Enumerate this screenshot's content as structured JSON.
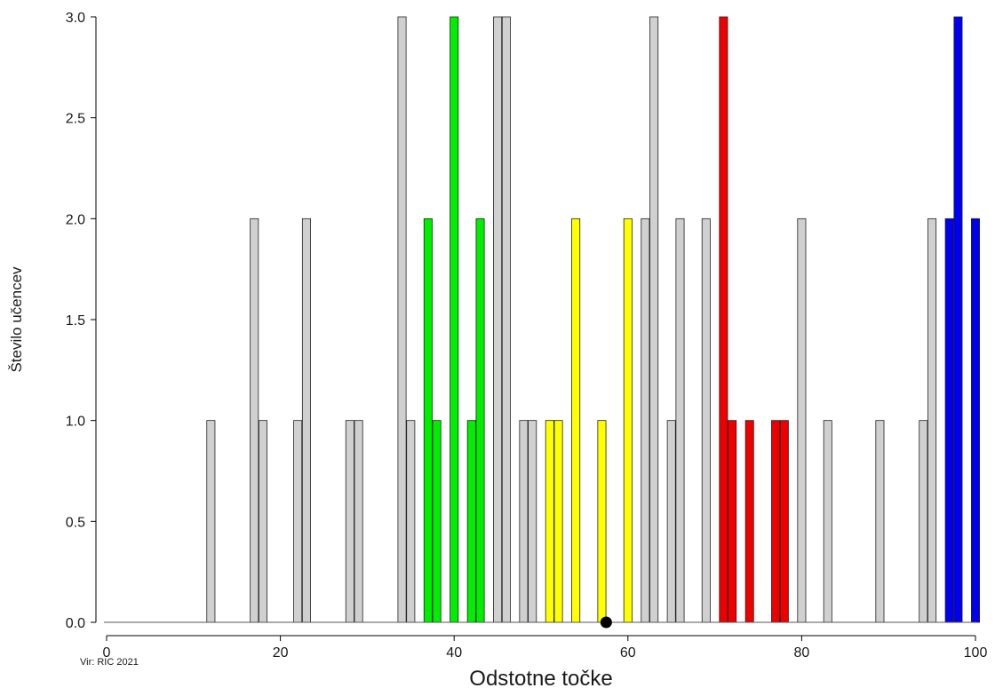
{
  "source_note": "Vir: RIC 2021",
  "chart_data": {
    "type": "bar",
    "xlabel": "Odstotne točke",
    "ylabel": "Število učencev",
    "xlim": [
      0,
      100
    ],
    "ylim": [
      0,
      3
    ],
    "x_ticks": [
      0,
      20,
      40,
      60,
      80,
      100
    ],
    "y_ticks": [
      0,
      0.5,
      1,
      1.5,
      2,
      2.5,
      3
    ],
    "y_tick_labels": [
      "0.0",
      "0.5",
      "1.0",
      "1.5",
      "2.0",
      "2.5",
      "3.0"
    ],
    "grid": false,
    "legend": "none",
    "colors": {
      "grey": "#d0d0d0",
      "green": "#00ee00",
      "yellow": "#ffff00",
      "red": "#ee0000",
      "blue": "#0000ee"
    },
    "bars": [
      {
        "x": 12,
        "y": 1,
        "group": "grey"
      },
      {
        "x": 17,
        "y": 2,
        "group": "grey"
      },
      {
        "x": 18,
        "y": 1,
        "group": "grey"
      },
      {
        "x": 22,
        "y": 1,
        "group": "grey"
      },
      {
        "x": 23,
        "y": 2,
        "group": "grey"
      },
      {
        "x": 28,
        "y": 1,
        "group": "grey"
      },
      {
        "x": 29,
        "y": 1,
        "group": "grey"
      },
      {
        "x": 34,
        "y": 3,
        "group": "grey"
      },
      {
        "x": 35,
        "y": 1,
        "group": "grey"
      },
      {
        "x": 37,
        "y": 2,
        "group": "green"
      },
      {
        "x": 38,
        "y": 1,
        "group": "green"
      },
      {
        "x": 40,
        "y": 3,
        "group": "green"
      },
      {
        "x": 42,
        "y": 1,
        "group": "green"
      },
      {
        "x": 43,
        "y": 2,
        "group": "green"
      },
      {
        "x": 45,
        "y": 3,
        "group": "grey"
      },
      {
        "x": 46,
        "y": 3,
        "group": "grey"
      },
      {
        "x": 48,
        "y": 1,
        "group": "grey"
      },
      {
        "x": 49,
        "y": 1,
        "group": "grey"
      },
      {
        "x": 51,
        "y": 1,
        "group": "yellow"
      },
      {
        "x": 52,
        "y": 1,
        "group": "yellow"
      },
      {
        "x": 54,
        "y": 2,
        "group": "yellow"
      },
      {
        "x": 57,
        "y": 1,
        "group": "yellow"
      },
      {
        "x": 60,
        "y": 2,
        "group": "yellow"
      },
      {
        "x": 62,
        "y": 2,
        "group": "grey"
      },
      {
        "x": 63,
        "y": 3,
        "group": "grey"
      },
      {
        "x": 65,
        "y": 1,
        "group": "grey"
      },
      {
        "x": 66,
        "y": 2,
        "group": "grey"
      },
      {
        "x": 69,
        "y": 2,
        "group": "grey"
      },
      {
        "x": 71,
        "y": 3,
        "group": "red"
      },
      {
        "x": 72,
        "y": 1,
        "group": "red"
      },
      {
        "x": 74,
        "y": 1,
        "group": "red"
      },
      {
        "x": 77,
        "y": 1,
        "group": "red"
      },
      {
        "x": 78,
        "y": 1,
        "group": "red"
      },
      {
        "x": 80,
        "y": 2,
        "group": "grey"
      },
      {
        "x": 83,
        "y": 1,
        "group": "grey"
      },
      {
        "x": 89,
        "y": 1,
        "group": "grey"
      },
      {
        "x": 94,
        "y": 1,
        "group": "grey"
      },
      {
        "x": 95,
        "y": 2,
        "group": "grey"
      },
      {
        "x": 97,
        "y": 2,
        "group": "blue"
      },
      {
        "x": 98,
        "y": 3,
        "group": "blue"
      },
      {
        "x": 100,
        "y": 2,
        "group": "blue"
      }
    ],
    "marker": {
      "x": 57.5,
      "y": 0,
      "color": "#000000"
    }
  }
}
